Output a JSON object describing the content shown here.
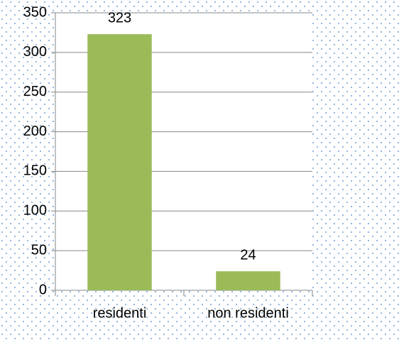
{
  "chart_data": {
    "type": "bar",
    "categories": [
      "residenti",
      "non residenti"
    ],
    "values": [
      323,
      24
    ],
    "color": "#9bbb59",
    "ylim": [
      0,
      350
    ],
    "yticks": [
      0,
      50,
      100,
      150,
      200,
      250,
      300,
      350
    ],
    "grid": true
  }
}
